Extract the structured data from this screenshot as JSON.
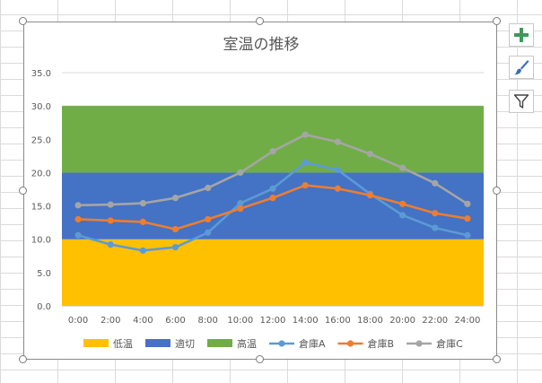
{
  "chart_data": {
    "type": "line",
    "title": "室温の推移",
    "categories": [
      "0:00",
      "2:00",
      "4:00",
      "6:00",
      "8:00",
      "10:00",
      "12:00",
      "14:00",
      "16:00",
      "18:00",
      "20:00",
      "22:00",
      "24:00"
    ],
    "ylim": [
      0,
      35
    ],
    "yticks": [
      "0.0",
      "5.0",
      "10.0",
      "15.0",
      "20.0",
      "25.0",
      "30.0",
      "35.0"
    ],
    "grid": true,
    "legend_position": "bottom",
    "bands": [
      {
        "name": "低温",
        "from": 0,
        "to": 10,
        "color": "#FFC000"
      },
      {
        "name": "適切",
        "from": 10,
        "to": 20,
        "color": "#4472C4"
      },
      {
        "name": "高温",
        "from": 20,
        "to": 30,
        "color": "#70AD47"
      }
    ],
    "series": [
      {
        "name": "倉庫A",
        "color": "#5B9BD5",
        "values": [
          10.6,
          9.2,
          8.3,
          8.8,
          11.0,
          15.4,
          17.6,
          21.5,
          20.4,
          16.8,
          13.6,
          11.7,
          10.6
        ]
      },
      {
        "name": "倉庫B",
        "color": "#ED7D31",
        "values": [
          13.0,
          12.8,
          12.6,
          11.5,
          13.0,
          14.6,
          16.2,
          18.1,
          17.6,
          16.6,
          15.3,
          13.9,
          13.1
        ]
      },
      {
        "name": "倉庫C",
        "color": "#A5A5A5",
        "values": [
          15.1,
          15.2,
          15.4,
          16.2,
          17.7,
          20.0,
          23.2,
          25.7,
          24.6,
          22.8,
          20.7,
          18.4,
          15.3
        ]
      }
    ]
  },
  "side_buttons": {
    "elements": "chart-elements-plus-icon",
    "styles": "chart-styles-brush-icon",
    "filters": "chart-filter-funnel-icon"
  }
}
